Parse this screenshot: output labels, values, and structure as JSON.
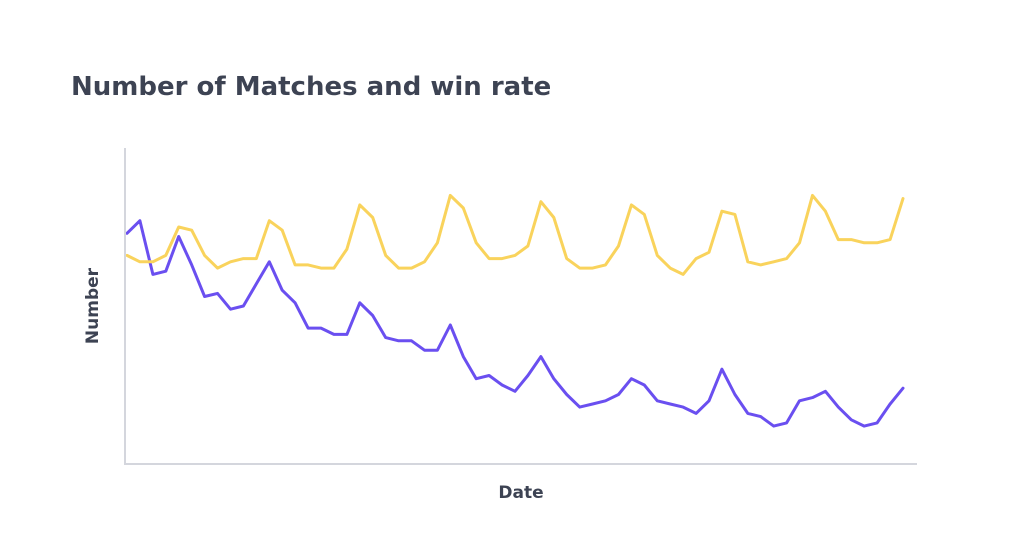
{
  "chart_data": {
    "type": "line",
    "title": "Number of Matches and win rate",
    "xlabel": "Date",
    "ylabel": "Number",
    "grid": false,
    "x_tick_labels": false,
    "y_tick_labels": false,
    "ylim": [
      0,
      100
    ],
    "colors": {
      "title": "#3d4353",
      "axis": "#d4d6dd",
      "purple": "#6a4ff0",
      "yellow": "#f9d35c"
    },
    "series": [
      {
        "color": "#6a4ff0",
        "values": [
          73,
          77,
          60,
          61,
          72,
          63,
          53,
          54,
          49,
          50,
          57,
          64,
          55,
          51,
          43,
          43,
          41,
          41,
          51,
          47,
          40,
          39,
          39,
          36,
          36,
          44,
          34,
          27,
          28,
          25,
          23,
          28,
          34,
          27,
          22,
          18,
          19,
          20,
          22,
          27,
          25,
          20,
          19,
          18,
          16,
          20,
          30,
          22,
          16,
          15,
          12,
          13,
          20,
          21,
          23,
          18,
          14,
          12,
          13,
          19,
          24
        ]
      },
      {
        "color": "#f9d35c",
        "values": [
          66,
          64,
          64,
          66,
          75,
          74,
          66,
          62,
          64,
          65,
          65,
          77,
          74,
          63,
          63,
          62,
          62,
          68,
          82,
          78,
          66,
          62,
          62,
          64,
          70,
          85,
          81,
          70,
          65,
          65,
          66,
          69,
          83,
          78,
          65,
          62,
          62,
          63,
          69,
          82,
          79,
          66,
          62,
          60,
          65,
          67,
          80,
          79,
          64,
          63,
          64,
          65,
          70,
          85,
          80,
          71,
          71,
          70,
          70,
          71,
          84
        ]
      }
    ]
  }
}
